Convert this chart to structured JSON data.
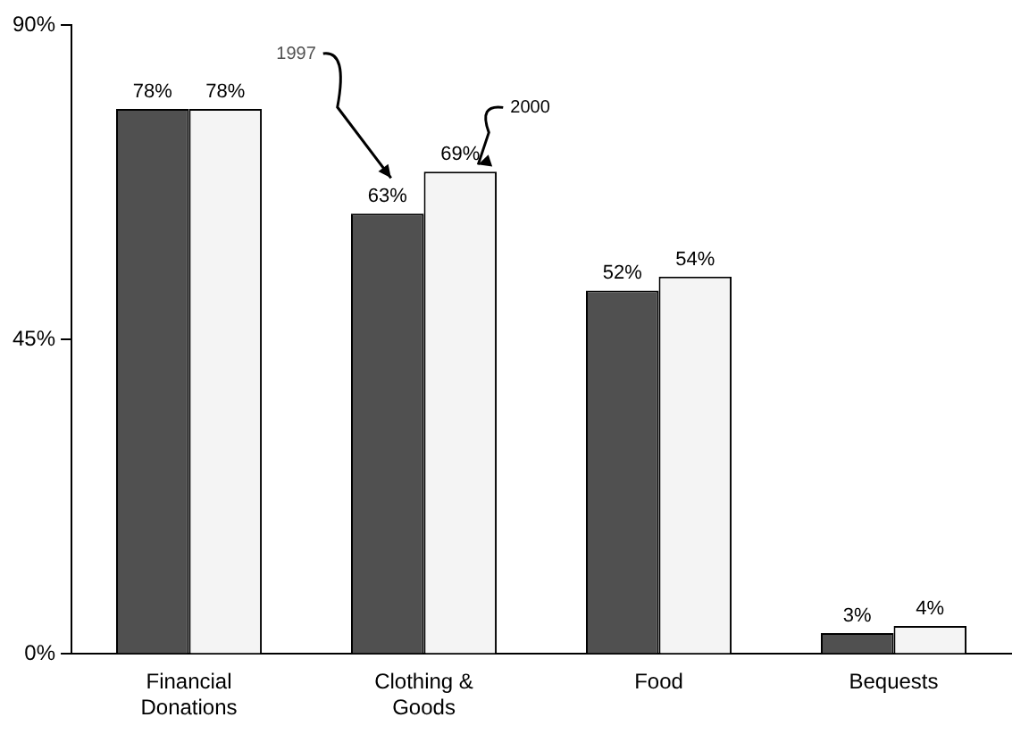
{
  "chart_data": {
    "type": "bar",
    "categories": [
      "Financial Donations",
      "Clothing & Goods",
      "Food",
      "Bequests"
    ],
    "series": [
      {
        "name": "1997",
        "color": "#505050",
        "values": [
          78,
          63,
          52,
          3
        ],
        "value_labels": [
          "78%",
          "63%",
          "52%",
          "3%"
        ]
      },
      {
        "name": "2000",
        "color": "#f4f4f4",
        "values": [
          78,
          69,
          54,
          4
        ],
        "value_labels": [
          "78%",
          "69%",
          "54%",
          "4%"
        ]
      }
    ],
    "ylim": [
      0,
      90
    ],
    "yticks": [
      {
        "value": 0,
        "label": "0%"
      },
      {
        "value": 45,
        "label": "45%"
      },
      {
        "value": 90,
        "label": "90%"
      }
    ],
    "grid": false,
    "legend": false
  }
}
